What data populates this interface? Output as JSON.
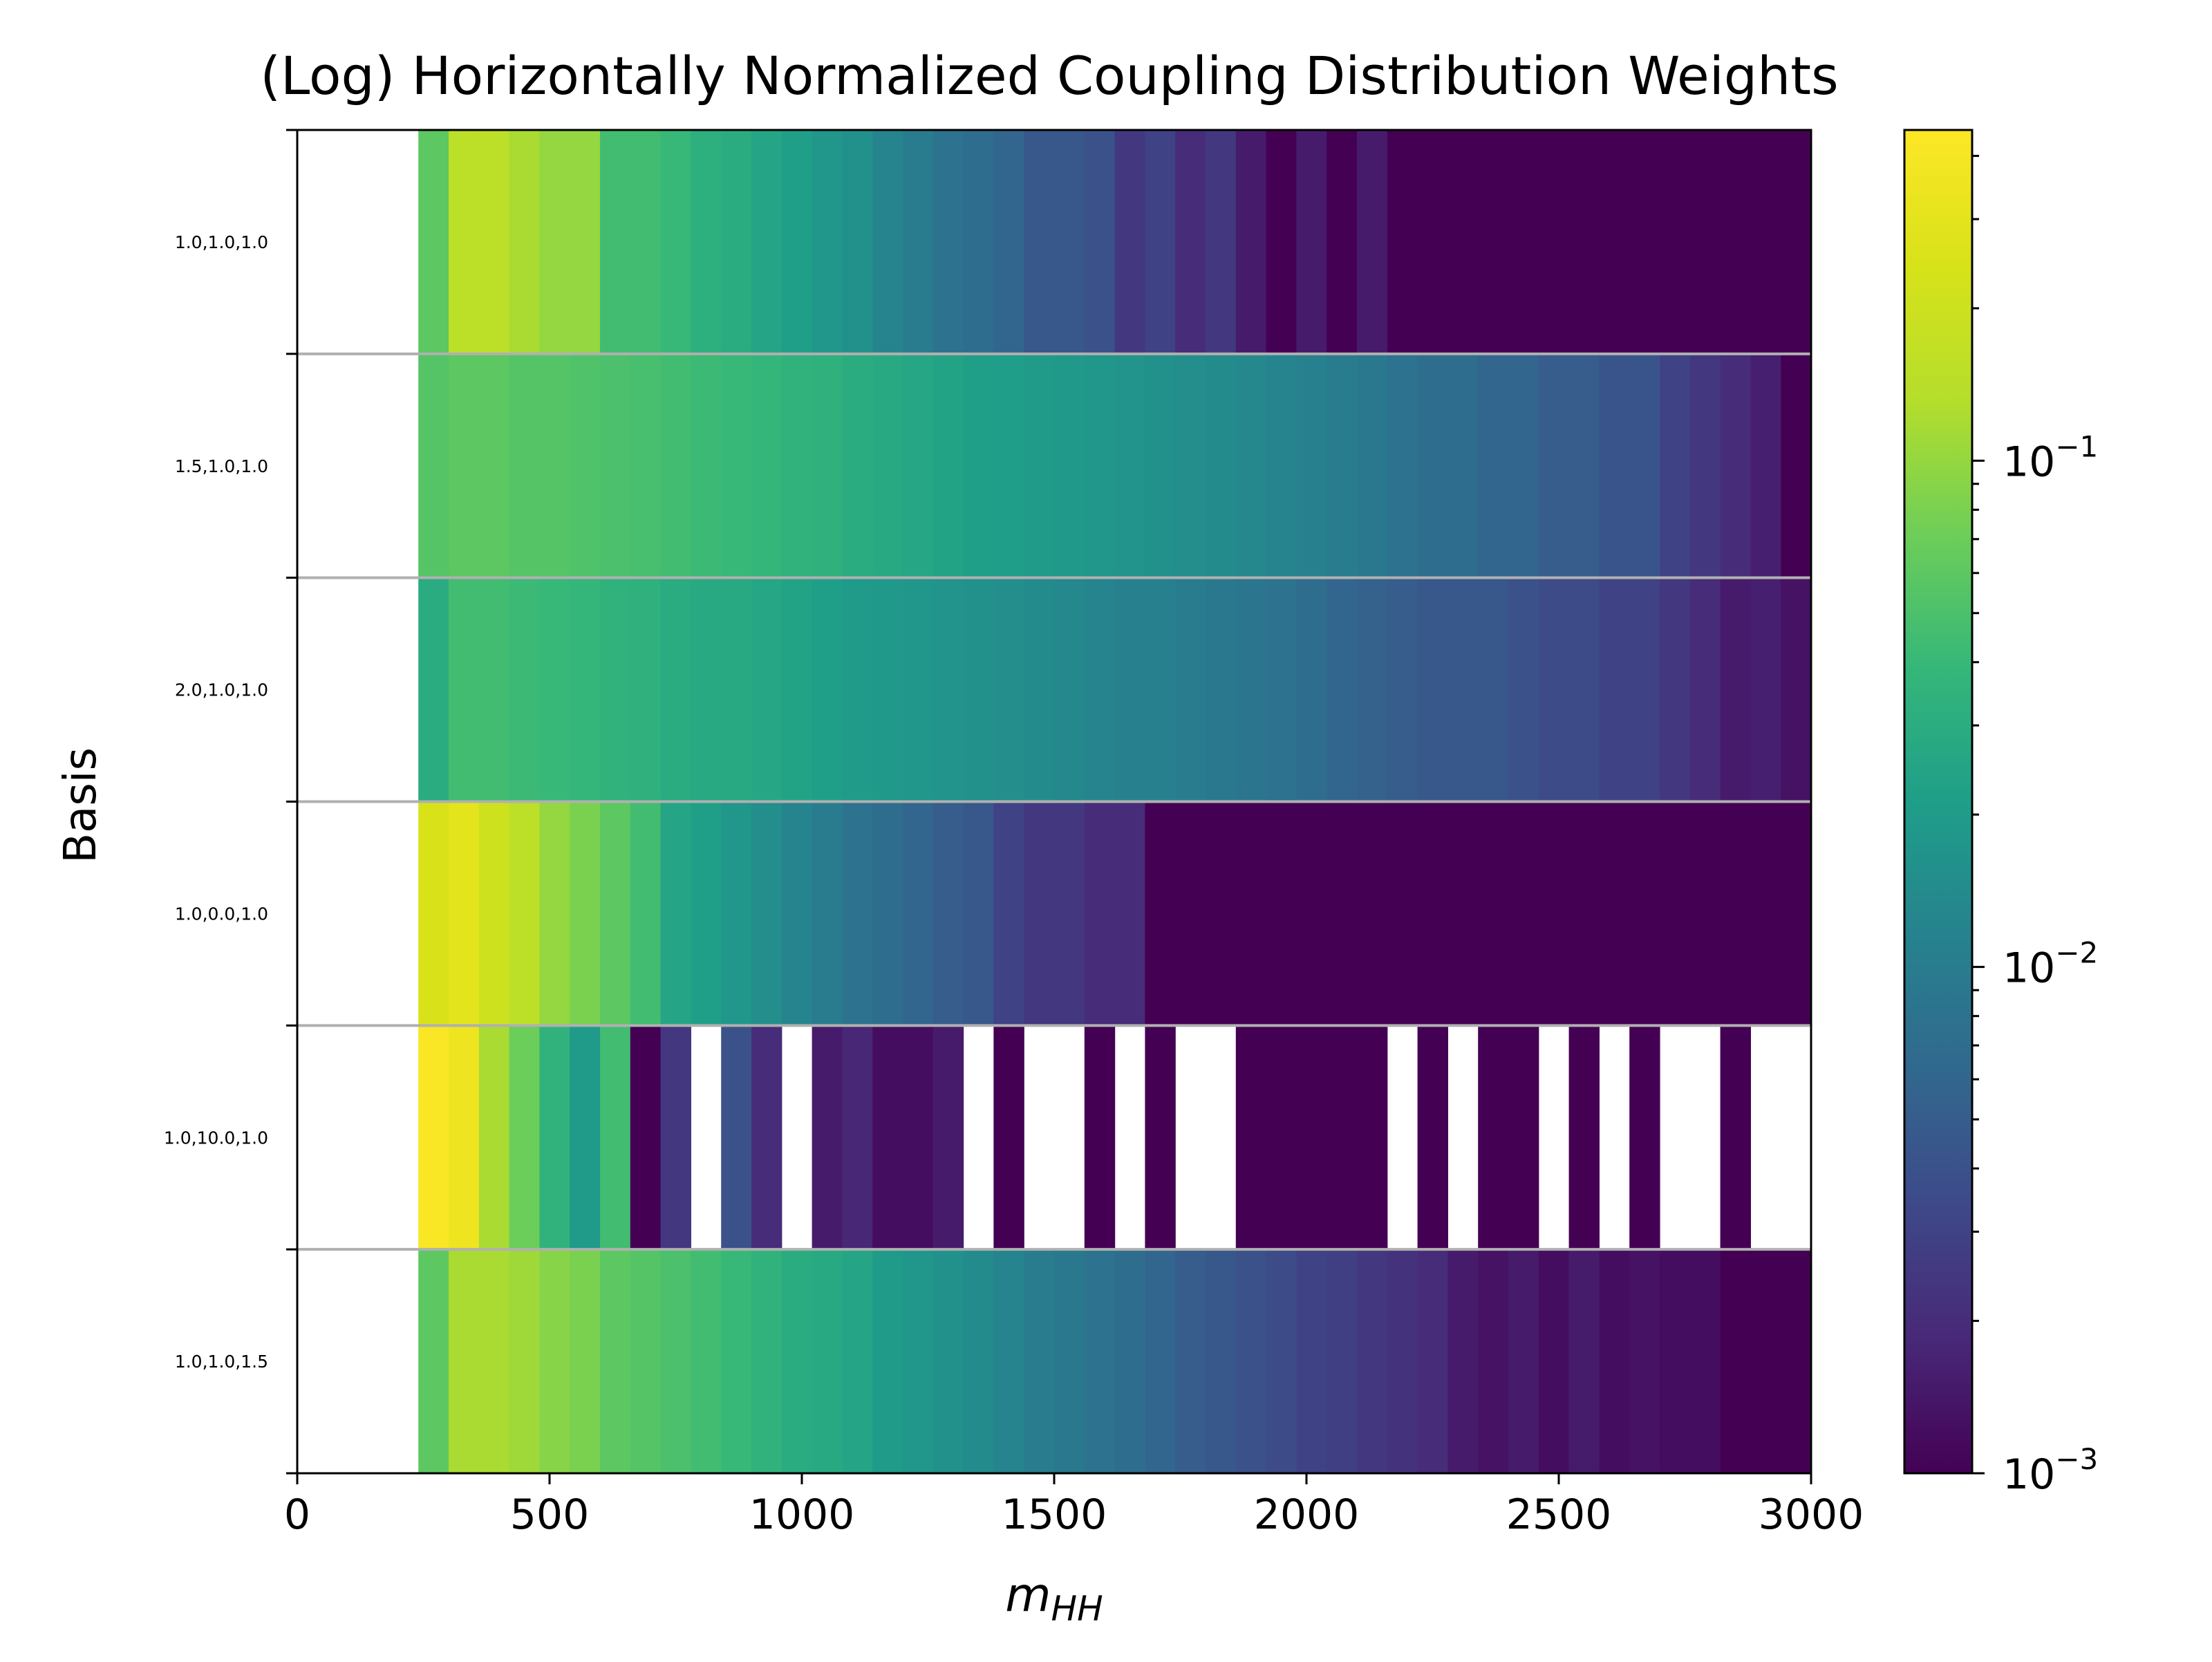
{
  "chart_data": {
    "type": "heatmap",
    "title": "(Log) Horizontally Normalized Coupling Distribution Weights",
    "xlabel": "m_HH",
    "xlabel_main": "m",
    "xlabel_sub": "HH",
    "ylabel": "Basis",
    "xlim": [
      0,
      3000
    ],
    "x_ticks": [
      0,
      500,
      1000,
      1500,
      2000,
      2500,
      3000
    ],
    "x_tick_labels": [
      "0",
      "500",
      "1000",
      "1500",
      "2000",
      "2500",
      "3000"
    ],
    "bin_width": 60,
    "bins_start": 240,
    "bins_end": 3000,
    "rows": [
      "1.0,1.0,1.0",
      "1.5,1.0,1.0",
      "2.0,1.0,1.0",
      "1.0,0.0,1.0",
      "1.0,10.0,1.0",
      "1.0,1.0,1.5"
    ],
    "colorbar": {
      "scale": "log",
      "min": 0.001,
      "max": 0.45,
      "major_ticks": [
        0.001,
        0.01,
        0.1
      ],
      "major_tick_labels": [
        {
          "base": "10",
          "exp": "−3"
        },
        {
          "base": "10",
          "exp": "−2"
        },
        {
          "base": "10",
          "exp": "−1"
        }
      ],
      "colormap": "viridis"
    },
    "grid": "row separators",
    "values": [
      [
        0.06,
        0.15,
        0.15,
        0.12,
        0.1,
        0.1,
        0.045,
        0.045,
        0.04,
        0.032,
        0.03,
        0.025,
        0.022,
        0.018,
        0.016,
        0.012,
        0.01,
        0.008,
        0.007,
        0.006,
        0.0045,
        0.0045,
        0.004,
        0.0025,
        0.003,
        0.002,
        0.0025,
        0.0015,
        0.001,
        0.0015,
        0.001,
        0.0015,
        0.001,
        0.001,
        0.001,
        0.001,
        0.001,
        0.001,
        0.001,
        0.001,
        0.001,
        0.001,
        0.001,
        0.001,
        0.001,
        0.001
      ],
      [
        0.055,
        0.06,
        0.06,
        0.055,
        0.055,
        0.052,
        0.05,
        0.048,
        0.045,
        0.042,
        0.04,
        0.038,
        0.035,
        0.033,
        0.03,
        0.028,
        0.026,
        0.024,
        0.022,
        0.021,
        0.02,
        0.019,
        0.018,
        0.017,
        0.016,
        0.015,
        0.014,
        0.013,
        0.012,
        0.011,
        0.01,
        0.009,
        0.008,
        0.007,
        0.007,
        0.006,
        0.006,
        0.005,
        0.005,
        0.0042,
        0.0042,
        0.003,
        0.0025,
        0.002,
        0.0016,
        0.001
      ],
      [
        0.03,
        0.045,
        0.045,
        0.042,
        0.04,
        0.038,
        0.035,
        0.033,
        0.03,
        0.028,
        0.028,
        0.026,
        0.024,
        0.022,
        0.02,
        0.019,
        0.018,
        0.017,
        0.016,
        0.015,
        0.014,
        0.013,
        0.012,
        0.011,
        0.011,
        0.01,
        0.009,
        0.0085,
        0.008,
        0.007,
        0.006,
        0.0055,
        0.005,
        0.0045,
        0.0045,
        0.0045,
        0.004,
        0.0035,
        0.0035,
        0.003,
        0.003,
        0.0025,
        0.002,
        0.0015,
        0.0016,
        0.0013
      ],
      [
        0.25,
        0.3,
        0.2,
        0.15,
        0.1,
        0.08,
        0.06,
        0.045,
        0.025,
        0.022,
        0.018,
        0.015,
        0.012,
        0.01,
        0.008,
        0.007,
        0.006,
        0.005,
        0.0045,
        0.003,
        0.0025,
        0.0025,
        0.002,
        0.002,
        0.001,
        0.001,
        0.001,
        0.001,
        0.001,
        0.001,
        0.001,
        0.001,
        0.001,
        0.001,
        0.001,
        0.001,
        0.001,
        0.001,
        0.001,
        0.001,
        0.001,
        0.001,
        0.001,
        0.001,
        0.001,
        0.001
      ],
      [
        0.42,
        0.35,
        0.12,
        0.07,
        0.035,
        0.02,
        0.045,
        0.001,
        0.0025,
        null,
        0.004,
        0.002,
        null,
        0.0015,
        0.0018,
        0.0012,
        0.0012,
        0.0015,
        null,
        0.001,
        null,
        null,
        0.001,
        null,
        0.001,
        null,
        null,
        0.001,
        0.001,
        0.001,
        0.001,
        0.001,
        null,
        0.001,
        null,
        0.001,
        0.001,
        null,
        0.001,
        null,
        0.001,
        null,
        null,
        0.001,
        null,
        null
      ],
      [
        0.06,
        0.12,
        0.12,
        0.11,
        0.09,
        0.08,
        0.06,
        0.055,
        0.05,
        0.045,
        0.04,
        0.035,
        0.03,
        0.028,
        0.025,
        0.02,
        0.018,
        0.016,
        0.014,
        0.012,
        0.01,
        0.009,
        0.008,
        0.007,
        0.006,
        0.005,
        0.0045,
        0.004,
        0.0035,
        0.003,
        0.0028,
        0.0025,
        0.0022,
        0.002,
        0.0015,
        0.0013,
        0.0015,
        0.0012,
        0.0015,
        0.0012,
        0.0013,
        0.0012,
        0.0012,
        0.001,
        0.001,
        0.001
      ]
    ]
  }
}
